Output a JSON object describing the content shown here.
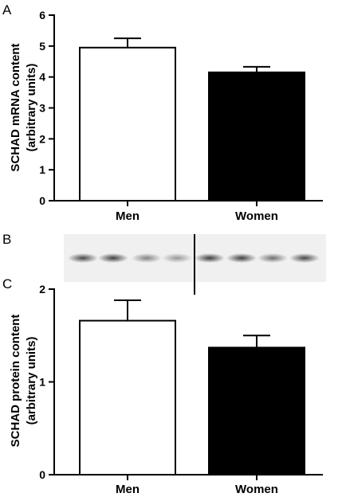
{
  "panels": [
    {
      "letter": "A"
    },
    {
      "letter": "B"
    },
    {
      "letter": "C"
    }
  ],
  "colors": {
    "men_fill": "#ffffff",
    "women_fill": "#000000",
    "outline": "#000000",
    "blot_background": "#f0f0f0",
    "band": "#2a2a2a"
  },
  "blot": {
    "lanes": 8,
    "divider_after_lane": 4,
    "band_intensity": [
      0.85,
      0.9,
      0.55,
      0.45,
      0.9,
      0.9,
      0.65,
      0.85
    ]
  },
  "chart_data": [
    {
      "type": "bar",
      "panel": "A",
      "categories": [
        "Men",
        "Women"
      ],
      "values": [
        4.95,
        4.15
      ],
      "errors": [
        0.3,
        0.18
      ],
      "ylabel_line1": "SCHAD mRNA content",
      "ylabel_line2": "(arbitrary units)",
      "ylim": [
        0,
        6
      ],
      "yticks": [
        "0",
        "1",
        "2",
        "3",
        "4",
        "5",
        "6"
      ],
      "fills": [
        "#ffffff",
        "#000000"
      ]
    },
    {
      "type": "bar",
      "panel": "C",
      "categories": [
        "Men",
        "Women"
      ],
      "values": [
        1.66,
        1.37
      ],
      "errors": [
        0.22,
        0.13
      ],
      "ylabel_line1": "SCHAD protein content",
      "ylabel_line2": "(arbitrary units)",
      "ylim": [
        0,
        2
      ],
      "yticks": [
        "0",
        "1",
        "2"
      ],
      "fills": [
        "#ffffff",
        "#000000"
      ]
    }
  ]
}
